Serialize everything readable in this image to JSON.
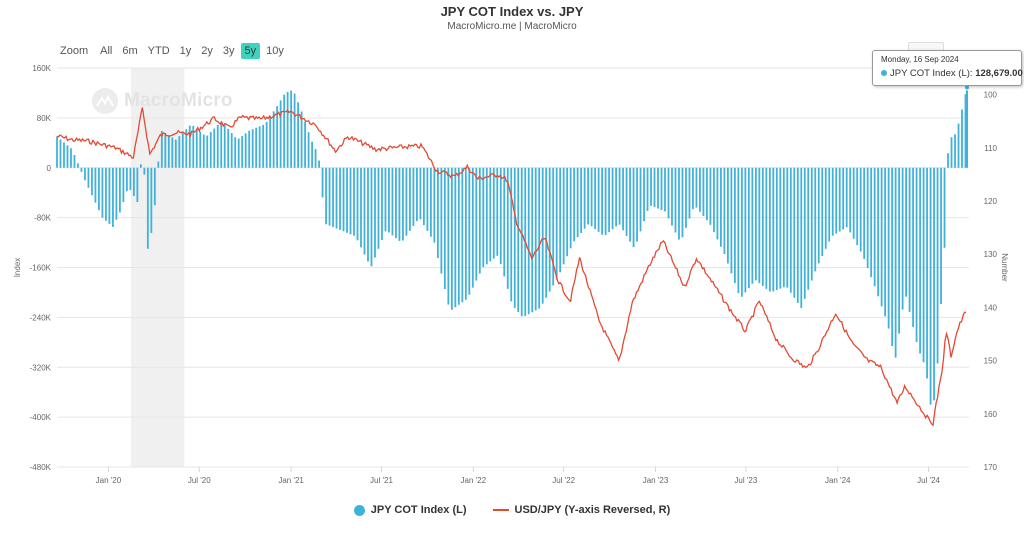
{
  "title": "JPY COT Index vs. JPY",
  "subtitle": "MacroMicro.me | MacroMicro",
  "watermark": "MacroMicro",
  "zoom": {
    "label": "Zoom",
    "buttons": [
      "All",
      "6m",
      "YTD",
      "1y",
      "2y",
      "3y",
      "5y",
      "10y"
    ],
    "active": "5y"
  },
  "tooltip": {
    "date": "Monday, 16 Sep 2024",
    "series": "JPY COT Index (L):",
    "value": "128,679.00"
  },
  "colors": {
    "bars": "#40b2d9",
    "line": "#e34a33",
    "grid": "#e6e6e6",
    "shade": "#f0f0f0",
    "active_zoom": "#3ed3bd"
  },
  "chart_data": {
    "type": "bar+line",
    "title": "JPY COT Index vs. JPY",
    "x_range": [
      "2019-09-20",
      "2024-09-20"
    ],
    "x_tick_labels": [
      "Jan '20",
      "Jul '20",
      "Jan '21",
      "Jul '21",
      "Jan '22",
      "Jul '22",
      "Jan '23",
      "Jul '23",
      "Jan '24",
      "Jul '24"
    ],
    "x_tick_dates": [
      "2020-01-01",
      "2020-07-01",
      "2021-01-01",
      "2021-07-01",
      "2022-01-01",
      "2022-07-01",
      "2023-01-01",
      "2023-07-01",
      "2024-01-01",
      "2024-07-01"
    ],
    "y_left": {
      "label": "Index",
      "min": -480000,
      "max": 160000,
      "ticks": [
        "160K",
        "80K",
        "0",
        "-80K",
        "-160K",
        "-240K",
        "-320K",
        "-400K",
        "-480K"
      ]
    },
    "y_right": {
      "label": "Number",
      "reversed": true,
      "min": 95,
      "max": 170,
      "ticks": [
        "100",
        "110",
        "120",
        "130",
        "140",
        "150",
        "160",
        "170"
      ]
    },
    "shaded_range": [
      "2020-02-15",
      "2020-06-01"
    ],
    "series": [
      {
        "name": "JPY COT Index (L)",
        "axis": "left",
        "kind": "bar",
        "points": [
          [
            "2019-09-20",
            50000
          ],
          [
            "2019-10-20",
            30000
          ],
          [
            "2019-11-15",
            -20000
          ],
          [
            "2019-12-20",
            -80000
          ],
          [
            "2020-01-10",
            -95000
          ],
          [
            "2020-01-25",
            -70000
          ],
          [
            "2020-02-10",
            -30000
          ],
          [
            "2020-02-28",
            -55000
          ],
          [
            "2020-03-10",
            40000
          ],
          [
            "2020-03-20",
            -130000
          ],
          [
            "2020-03-31",
            -90000
          ],
          [
            "2020-04-15",
            60000
          ],
          [
            "2020-05-15",
            45000
          ],
          [
            "2020-06-15",
            70000
          ],
          [
            "2020-07-15",
            50000
          ],
          [
            "2020-08-15",
            75000
          ],
          [
            "2020-09-15",
            45000
          ],
          [
            "2020-10-10",
            60000
          ],
          [
            "2020-11-10",
            70000
          ],
          [
            "2020-12-05",
            100000
          ],
          [
            "2020-12-20",
            120000
          ],
          [
            "2021-01-05",
            125000
          ],
          [
            "2021-01-20",
            95000
          ],
          [
            "2021-02-10",
            45000
          ],
          [
            "2021-02-25",
            20000
          ],
          [
            "2021-03-10",
            -90000
          ],
          [
            "2021-04-10",
            -100000
          ],
          [
            "2021-05-10",
            -110000
          ],
          [
            "2021-06-10",
            -160000
          ],
          [
            "2021-07-10",
            -100000
          ],
          [
            "2021-08-10",
            -120000
          ],
          [
            "2021-09-15",
            -80000
          ],
          [
            "2021-10-15",
            -120000
          ],
          [
            "2021-11-15",
            -230000
          ],
          [
            "2021-12-20",
            -210000
          ],
          [
            "2022-01-20",
            -160000
          ],
          [
            "2022-02-20",
            -140000
          ],
          [
            "2022-03-20",
            -220000
          ],
          [
            "2022-04-10",
            -240000
          ],
          [
            "2022-05-15",
            -225000
          ],
          [
            "2022-06-20",
            -175000
          ],
          [
            "2022-07-20",
            -120000
          ],
          [
            "2022-08-20",
            -90000
          ],
          [
            "2022-09-20",
            -110000
          ],
          [
            "2022-10-20",
            -90000
          ],
          [
            "2022-11-20",
            -130000
          ],
          [
            "2022-12-20",
            -60000
          ],
          [
            "2023-01-20",
            -70000
          ],
          [
            "2023-02-20",
            -120000
          ],
          [
            "2023-03-20",
            -60000
          ],
          [
            "2023-04-20",
            -90000
          ],
          [
            "2023-05-20",
            -140000
          ],
          [
            "2023-06-20",
            -210000
          ],
          [
            "2023-07-20",
            -180000
          ],
          [
            "2023-08-20",
            -200000
          ],
          [
            "2023-09-20",
            -190000
          ],
          [
            "2023-10-20",
            -225000
          ],
          [
            "2023-11-20",
            -160000
          ],
          [
            "2023-12-20",
            -110000
          ],
          [
            "2024-01-20",
            -95000
          ],
          [
            "2024-02-20",
            -140000
          ],
          [
            "2024-03-15",
            -190000
          ],
          [
            "2024-04-10",
            -250000
          ],
          [
            "2024-04-25",
            -310000
          ],
          [
            "2024-05-15",
            -200000
          ],
          [
            "2024-06-10",
            -290000
          ],
          [
            "2024-06-25",
            -320000
          ],
          [
            "2024-07-05",
            -380000
          ],
          [
            "2024-07-15",
            -370000
          ],
          [
            "2024-07-25",
            -230000
          ],
          [
            "2024-08-01",
            -150000
          ],
          [
            "2024-08-10",
            45000
          ],
          [
            "2024-08-25",
            55000
          ],
          [
            "2024-09-05",
            90000
          ],
          [
            "2024-09-16",
            128679
          ]
        ]
      },
      {
        "name": "USD/JPY (Y-axis Reversed, R)",
        "axis": "right",
        "kind": "line",
        "points": [
          [
            "2019-09-20",
            107.8
          ],
          [
            "2019-10-20",
            108.5
          ],
          [
            "2019-11-20",
            108.7
          ],
          [
            "2019-12-20",
            109.4
          ],
          [
            "2020-01-15",
            110.0
          ],
          [
            "2020-02-20",
            111.8
          ],
          [
            "2020-03-09",
            102.5
          ],
          [
            "2020-03-24",
            111.2
          ],
          [
            "2020-04-15",
            107.6
          ],
          [
            "2020-05-15",
            107.2
          ],
          [
            "2020-06-15",
            107.4
          ],
          [
            "2020-07-31",
            104.5
          ],
          [
            "2020-08-30",
            106.3
          ],
          [
            "2020-09-21",
            104.3
          ],
          [
            "2020-10-31",
            104.6
          ],
          [
            "2020-12-31",
            103.2
          ],
          [
            "2021-02-20",
            105.7
          ],
          [
            "2021-03-31",
            110.6
          ],
          [
            "2021-04-25",
            107.9
          ],
          [
            "2021-06-20",
            110.3
          ],
          [
            "2021-08-20",
            109.8
          ],
          [
            "2021-09-20",
            109.7
          ],
          [
            "2021-10-20",
            114.3
          ],
          [
            "2021-11-25",
            115.4
          ],
          [
            "2021-12-20",
            113.6
          ],
          [
            "2022-01-10",
            115.8
          ],
          [
            "2022-02-20",
            115.0
          ],
          [
            "2022-03-10",
            116.1
          ],
          [
            "2022-03-28",
            123.8
          ],
          [
            "2022-04-28",
            130.8
          ],
          [
            "2022-05-24",
            126.8
          ],
          [
            "2022-06-20",
            135.0
          ],
          [
            "2022-07-14",
            138.9
          ],
          [
            "2022-08-02",
            130.7
          ],
          [
            "2022-09-10",
            142.5
          ],
          [
            "2022-10-20",
            150.2
          ],
          [
            "2022-11-15",
            139.2
          ],
          [
            "2022-12-20",
            132.0
          ],
          [
            "2023-01-16",
            127.5
          ],
          [
            "2023-02-28",
            136.2
          ],
          [
            "2023-03-24",
            130.7
          ],
          [
            "2023-05-30",
            140.4
          ],
          [
            "2023-06-30",
            144.5
          ],
          [
            "2023-07-28",
            138.8
          ],
          [
            "2023-08-31",
            146.0
          ],
          [
            "2023-09-29",
            149.3
          ],
          [
            "2023-10-31",
            151.5
          ],
          [
            "2023-11-20",
            148.4
          ],
          [
            "2023-12-28",
            141.0
          ],
          [
            "2024-01-31",
            146.9
          ],
          [
            "2024-03-01",
            150.0
          ],
          [
            "2024-03-28",
            151.3
          ],
          [
            "2024-04-29",
            158.0
          ],
          [
            "2024-05-15",
            154.8
          ],
          [
            "2024-06-30",
            161.0
          ],
          [
            "2024-07-10",
            161.7
          ],
          [
            "2024-07-31",
            150.0
          ],
          [
            "2024-08-05",
            144.2
          ],
          [
            "2024-08-15",
            149.1
          ],
          [
            "2024-08-28",
            144.2
          ],
          [
            "2024-09-13",
            140.8
          ],
          [
            "2024-09-16",
            140.4
          ]
        ]
      }
    ]
  }
}
